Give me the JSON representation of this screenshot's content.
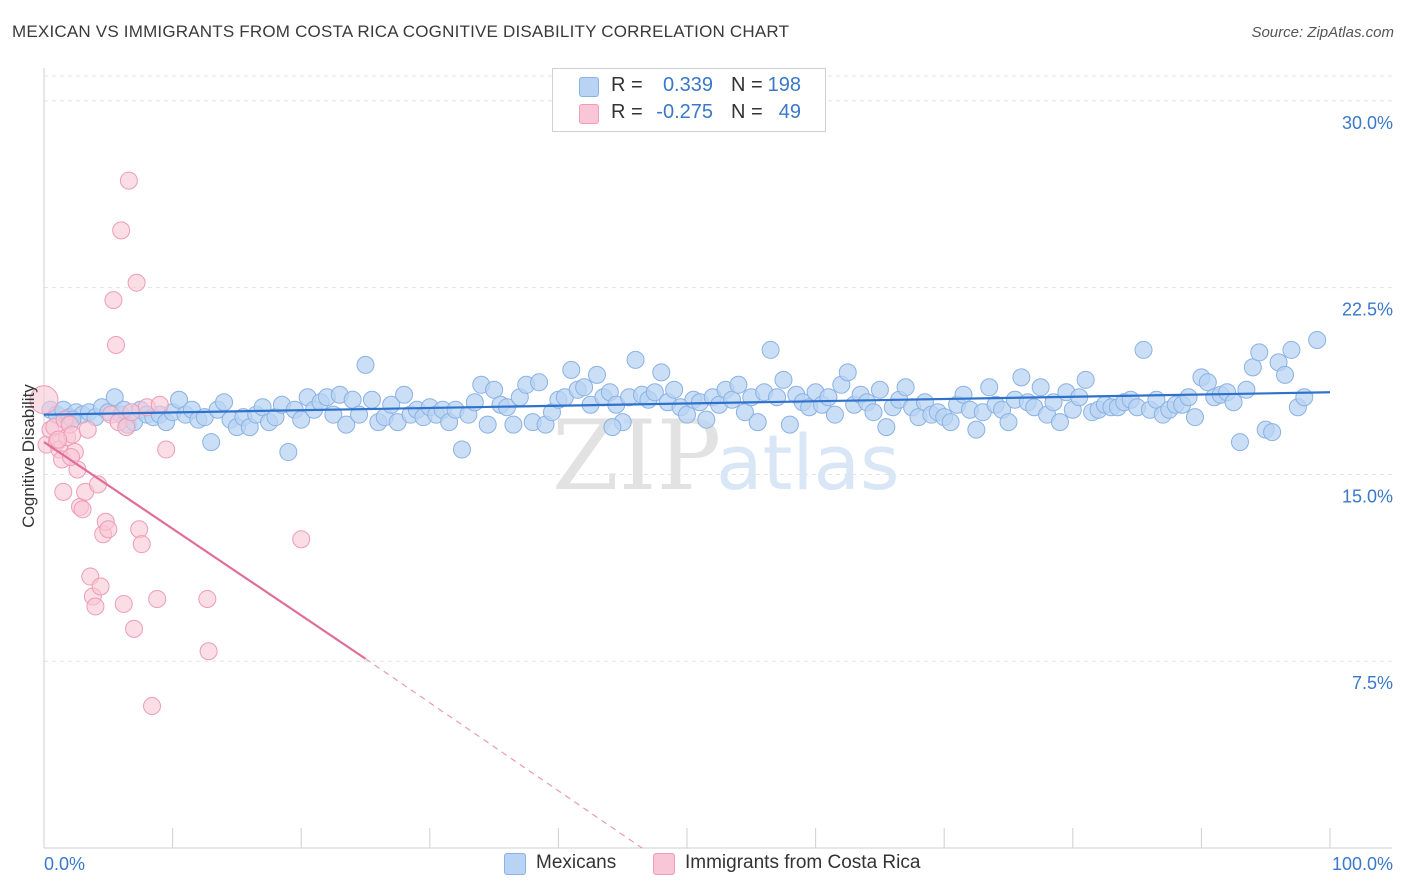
{
  "title": "MEXICAN VS IMMIGRANTS FROM COSTA RICA COGNITIVE DISABILITY CORRELATION CHART",
  "source": "Source: ZipAtlas.com",
  "watermark": {
    "zip": "ZIP",
    "atlas": "atlas"
  },
  "legend": {
    "r_label": "R =",
    "n_label": "N =",
    "blue": {
      "r": "0.339",
      "n": "198"
    },
    "pink": {
      "r": "-0.275",
      "n": "49"
    }
  },
  "bottom_legend": {
    "blue": "Mexicans",
    "pink": "Immigrants from Costa Rica"
  },
  "colors": {
    "blue_fill": "#b8d3f3",
    "blue_stroke": "#8ab2e4",
    "blue_line": "#2f72cc",
    "pink_fill": "#f8c6d6",
    "pink_stroke": "#ee9cb8",
    "pink_line": "#e06e98",
    "tick_text": "#3a78c9",
    "grid": "#e3e3e3"
  },
  "chart_data": {
    "type": "scatter",
    "title": "MEXICAN VS IMMIGRANTS FROM COSTA RICA COGNITIVE DISABILITY CORRELATION CHART",
    "xlabel": "",
    "ylabel": "Cognitive Disability",
    "xlim": [
      0,
      100
    ],
    "ylim": [
      0,
      31
    ],
    "x_tick_labels": [
      {
        "value": 0,
        "label": "0.0%"
      },
      {
        "value": 100,
        "label": "100.0%"
      }
    ],
    "y_ticks": [
      {
        "value": 7.5,
        "label": "7.5%"
      },
      {
        "value": 15,
        "label": "15.0%"
      },
      {
        "value": 22.5,
        "label": "22.5%"
      },
      {
        "value": 30,
        "label": "30.0%"
      }
    ],
    "x_minor_ticks": [
      0,
      10,
      20,
      30,
      40,
      50,
      60,
      70,
      80,
      90,
      100
    ],
    "grid": "horizontal dashed",
    "series": [
      {
        "name": "Mexicans",
        "color": "blue",
        "r": 0.339,
        "n": 198,
        "trend": {
          "x": [
            0,
            100
          ],
          "y": [
            17.4,
            18.3
          ]
        },
        "points": [
          [
            0.5,
            17.6
          ],
          [
            1.0,
            17.4
          ],
          [
            1.5,
            17.6
          ],
          [
            2.0,
            17.3
          ],
          [
            2.5,
            17.5
          ],
          [
            3.0,
            17.4
          ],
          [
            3.5,
            17.5
          ],
          [
            4.0,
            17.3
          ],
          [
            4.5,
            17.7
          ],
          [
            5.0,
            17.5
          ],
          [
            5.5,
            18.1
          ],
          [
            6.0,
            17.4
          ],
          [
            6.5,
            17.0
          ],
          [
            7.0,
            17.1
          ],
          [
            7.5,
            17.6
          ],
          [
            8.0,
            17.4
          ],
          [
            8.5,
            17.3
          ],
          [
            9.0,
            17.4
          ],
          [
            9.5,
            17.1
          ],
          [
            10.0,
            17.5
          ],
          [
            10.5,
            18.0
          ],
          [
            11.0,
            17.4
          ],
          [
            11.5,
            17.6
          ],
          [
            12.0,
            17.2
          ],
          [
            12.5,
            17.3
          ],
          [
            13.0,
            16.3
          ],
          [
            13.5,
            17.6
          ],
          [
            14.0,
            17.9
          ],
          [
            14.5,
            17.2
          ],
          [
            15.0,
            16.9
          ],
          [
            15.5,
            17.3
          ],
          [
            16.0,
            16.9
          ],
          [
            16.5,
            17.4
          ],
          [
            17.0,
            17.7
          ],
          [
            17.5,
            17.1
          ],
          [
            18.0,
            17.3
          ],
          [
            18.5,
            17.8
          ],
          [
            19.0,
            15.9
          ],
          [
            19.5,
            17.6
          ],
          [
            20.0,
            17.2
          ],
          [
            20.5,
            18.1
          ],
          [
            21.0,
            17.6
          ],
          [
            21.5,
            17.9
          ],
          [
            22.0,
            18.1
          ],
          [
            22.5,
            17.4
          ],
          [
            23.0,
            18.2
          ],
          [
            23.5,
            17.0
          ],
          [
            24.0,
            18.0
          ],
          [
            24.5,
            17.4
          ],
          [
            25.0,
            19.4
          ],
          [
            25.5,
            18.0
          ],
          [
            26.0,
            17.1
          ],
          [
            26.5,
            17.3
          ],
          [
            27.0,
            17.8
          ],
          [
            27.5,
            17.1
          ],
          [
            28.0,
            18.2
          ],
          [
            28.5,
            17.4
          ],
          [
            29.0,
            17.6
          ],
          [
            29.5,
            17.3
          ],
          [
            30.0,
            17.7
          ],
          [
            30.5,
            17.4
          ],
          [
            31.0,
            17.6
          ],
          [
            31.5,
            17.1
          ],
          [
            32.0,
            17.6
          ],
          [
            32.5,
            16.0
          ],
          [
            33.0,
            17.4
          ],
          [
            33.5,
            17.9
          ],
          [
            34.0,
            18.6
          ],
          [
            34.5,
            17.0
          ],
          [
            35.0,
            18.4
          ],
          [
            35.5,
            17.8
          ],
          [
            36.0,
            17.7
          ],
          [
            36.5,
            17.0
          ],
          [
            37.0,
            18.1
          ],
          [
            37.5,
            18.6
          ],
          [
            38.0,
            17.1
          ],
          [
            38.5,
            18.7
          ],
          [
            39.0,
            17.0
          ],
          [
            39.5,
            17.5
          ],
          [
            40.0,
            18.0
          ],
          [
            40.5,
            18.1
          ],
          [
            41.0,
            19.2
          ],
          [
            41.5,
            18.4
          ],
          [
            42.0,
            18.5
          ],
          [
            42.5,
            17.8
          ],
          [
            43.0,
            19.0
          ],
          [
            43.5,
            18.1
          ],
          [
            44.0,
            18.3
          ],
          [
            44.5,
            17.8
          ],
          [
            45.0,
            17.1
          ],
          [
            45.5,
            18.1
          ],
          [
            46.0,
            19.6
          ],
          [
            46.5,
            18.2
          ],
          [
            47.0,
            18.0
          ],
          [
            47.5,
            18.3
          ],
          [
            48.0,
            19.1
          ],
          [
            48.5,
            17.9
          ],
          [
            49.0,
            18.4
          ],
          [
            49.5,
            17.7
          ],
          [
            50.0,
            17.4
          ],
          [
            50.5,
            18.0
          ],
          [
            51.0,
            17.9
          ],
          [
            51.5,
            17.2
          ],
          [
            52.0,
            18.1
          ],
          [
            52.5,
            17.8
          ],
          [
            53.0,
            18.4
          ],
          [
            53.5,
            18.0
          ],
          [
            54.0,
            18.6
          ],
          [
            54.5,
            17.5
          ],
          [
            55.0,
            18.1
          ],
          [
            55.5,
            17.1
          ],
          [
            56.0,
            18.3
          ],
          [
            56.5,
            20.0
          ],
          [
            57.0,
            18.1
          ],
          [
            57.5,
            18.8
          ],
          [
            58.0,
            17.0
          ],
          [
            58.5,
            18.2
          ],
          [
            59.0,
            17.9
          ],
          [
            59.5,
            17.7
          ],
          [
            60.0,
            18.3
          ],
          [
            60.5,
            17.8
          ],
          [
            61.0,
            18.1
          ],
          [
            61.5,
            17.4
          ],
          [
            62.0,
            18.6
          ],
          [
            62.5,
            19.1
          ],
          [
            63.0,
            17.8
          ],
          [
            63.5,
            18.2
          ],
          [
            64.0,
            17.9
          ],
          [
            64.5,
            17.5
          ],
          [
            65.0,
            18.4
          ],
          [
            65.5,
            16.9
          ],
          [
            66.0,
            17.7
          ],
          [
            66.5,
            18.0
          ],
          [
            67.0,
            18.5
          ],
          [
            67.5,
            17.7
          ],
          [
            68.0,
            17.3
          ],
          [
            68.5,
            17.9
          ],
          [
            69.0,
            17.4
          ],
          [
            69.5,
            17.5
          ],
          [
            70.0,
            17.3
          ],
          [
            70.5,
            17.1
          ],
          [
            71.0,
            17.8
          ],
          [
            71.5,
            18.2
          ],
          [
            72.0,
            17.6
          ],
          [
            72.5,
            16.8
          ],
          [
            73.0,
            17.5
          ],
          [
            73.5,
            18.5
          ],
          [
            74.0,
            17.8
          ],
          [
            74.5,
            17.6
          ],
          [
            75.0,
            17.1
          ],
          [
            75.5,
            18.0
          ],
          [
            76.0,
            18.9
          ],
          [
            76.5,
            17.9
          ],
          [
            77.0,
            17.7
          ],
          [
            77.5,
            18.5
          ],
          [
            78.0,
            17.4
          ],
          [
            78.5,
            17.9
          ],
          [
            79.0,
            17.1
          ],
          [
            79.5,
            18.3
          ],
          [
            80.0,
            17.6
          ],
          [
            80.5,
            18.1
          ],
          [
            81.0,
            18.8
          ],
          [
            81.5,
            17.5
          ],
          [
            82.0,
            17.6
          ],
          [
            82.5,
            17.8
          ],
          [
            83.0,
            17.7
          ],
          [
            83.5,
            17.7
          ],
          [
            84.0,
            17.9
          ],
          [
            84.5,
            18.0
          ],
          [
            85.0,
            17.7
          ],
          [
            85.5,
            20.0
          ],
          [
            86.0,
            17.6
          ],
          [
            86.5,
            18.0
          ],
          [
            87.0,
            17.4
          ],
          [
            87.5,
            17.6
          ],
          [
            88.0,
            17.8
          ],
          [
            88.5,
            17.8
          ],
          [
            89.0,
            18.1
          ],
          [
            89.5,
            17.3
          ],
          [
            90.0,
            18.9
          ],
          [
            90.5,
            18.7
          ],
          [
            91.0,
            18.1
          ],
          [
            91.5,
            18.2
          ],
          [
            92.0,
            18.3
          ],
          [
            92.5,
            17.9
          ],
          [
            93.0,
            16.3
          ],
          [
            93.5,
            18.4
          ],
          [
            94.0,
            19.3
          ],
          [
            94.5,
            19.9
          ],
          [
            95.0,
            16.8
          ],
          [
            95.5,
            16.7
          ],
          [
            96.0,
            19.5
          ],
          [
            96.5,
            19.0
          ],
          [
            97.0,
            20.0
          ],
          [
            97.5,
            17.7
          ],
          [
            98.0,
            18.1
          ],
          [
            99.0,
            20.4
          ],
          [
            2.2,
            17.2
          ],
          [
            6.2,
            17.6
          ],
          [
            44.2,
            16.9
          ]
        ]
      },
      {
        "name": "Immigrants from Costa Rica",
        "color": "pink",
        "r": -0.275,
        "n": 49,
        "trend": {
          "x": [
            0,
            25
          ],
          "y": [
            16.3,
            7.6
          ]
        },
        "trend_dashed": {
          "x": [
            25,
            46.5
          ],
          "y": [
            7.6,
            0.0
          ]
        },
        "points": [
          [
            0.0,
            18.0
          ],
          [
            0.2,
            16.2
          ],
          [
            0.5,
            16.8
          ],
          [
            0.8,
            16.9
          ],
          [
            1.0,
            16.3
          ],
          [
            1.2,
            16.0
          ],
          [
            1.4,
            15.6
          ],
          [
            1.5,
            14.3
          ],
          [
            1.6,
            17.2
          ],
          [
            1.8,
            16.5
          ],
          [
            2.0,
            17.0
          ],
          [
            2.2,
            16.6
          ],
          [
            2.4,
            15.9
          ],
          [
            2.6,
            15.2
          ],
          [
            2.8,
            13.7
          ],
          [
            3.0,
            13.6
          ],
          [
            3.2,
            14.3
          ],
          [
            3.4,
            16.8
          ],
          [
            3.6,
            10.9
          ],
          [
            3.8,
            10.1
          ],
          [
            4.0,
            9.7
          ],
          [
            4.2,
            14.6
          ],
          [
            4.4,
            10.5
          ],
          [
            4.6,
            12.6
          ],
          [
            4.8,
            13.1
          ],
          [
            5.0,
            12.8
          ],
          [
            5.2,
            17.4
          ],
          [
            5.4,
            22.0
          ],
          [
            5.6,
            20.2
          ],
          [
            5.8,
            17.1
          ],
          [
            6.0,
            24.8
          ],
          [
            6.2,
            9.8
          ],
          [
            6.4,
            16.9
          ],
          [
            6.6,
            26.8
          ],
          [
            6.8,
            17.5
          ],
          [
            7.0,
            8.8
          ],
          [
            7.2,
            22.7
          ],
          [
            7.4,
            12.8
          ],
          [
            7.6,
            12.2
          ],
          [
            8.0,
            17.7
          ],
          [
            8.4,
            5.7
          ],
          [
            8.8,
            10.0
          ],
          [
            9.0,
            17.8
          ],
          [
            9.5,
            16.0
          ],
          [
            12.7,
            10.0
          ],
          [
            12.8,
            7.9
          ],
          [
            20.0,
            12.4
          ],
          [
            1.1,
            16.4
          ],
          [
            2.1,
            15.7
          ]
        ]
      }
    ]
  }
}
